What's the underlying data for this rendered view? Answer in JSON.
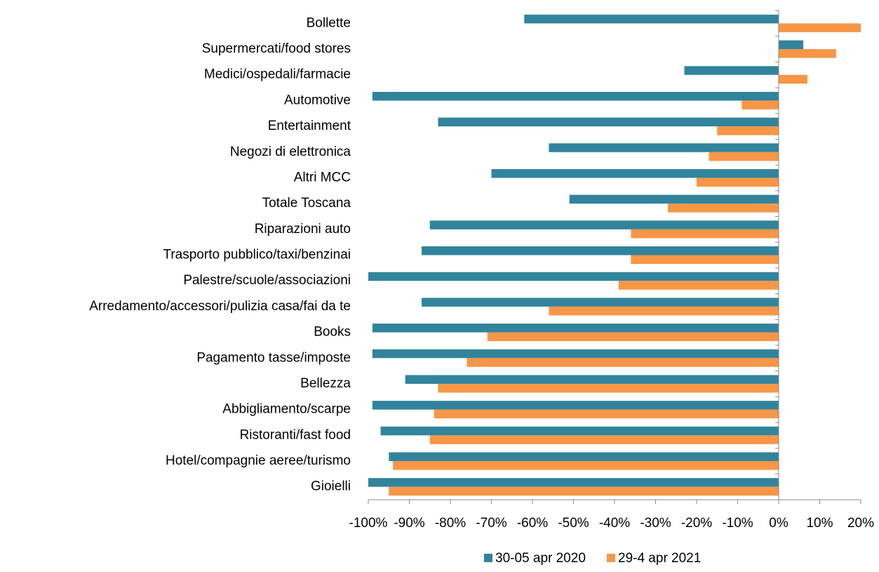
{
  "chart_data": {
    "type": "bar",
    "orientation": "horizontal",
    "categories": [
      "Bollette",
      "Supermercati/food stores",
      "Medici/ospedali/farmacie",
      "Automotive",
      "Entertainment",
      "Negozi di elettronica",
      "Altri MCC",
      "Totale Toscana",
      "Riparazioni auto",
      "Trasporto pubblico/taxi/benzinai",
      "Palestre/scuole/associazioni",
      "Arredamento/accessori/pulizia casa/fai da te",
      "Books",
      "Pagamento tasse/imposte",
      "Bellezza",
      "Abbigliamento/scarpe",
      "Ristoranti/fast food",
      "Hotel/compagnie aeree/turismo",
      "Gioielli"
    ],
    "series": [
      {
        "name": "30-05 apr 2020",
        "color": "#31849b",
        "values": [
          -62,
          6,
          -23,
          -99,
          -83,
          -56,
          -70,
          -51,
          -85,
          -87,
          -100,
          -87,
          -99,
          -99,
          -91,
          -99,
          -97,
          -95,
          -100
        ]
      },
      {
        "name": "29-4 apr 2021",
        "color": "#f79646",
        "values": [
          20,
          14,
          7,
          -9,
          -15,
          -17,
          -20,
          -27,
          -36,
          -36,
          -39,
          -56,
          -71,
          -76,
          -83,
          -84,
          -85,
          -94,
          -95
        ]
      }
    ],
    "xlim": [
      -100,
      20
    ],
    "xticks": [
      {
        "value": -100,
        "label": "-100%"
      },
      {
        "value": -90,
        "label": "-90%"
      },
      {
        "value": -80,
        "label": "-80%"
      },
      {
        "value": -70,
        "label": "-70%"
      },
      {
        "value": -60,
        "label": "-60%"
      },
      {
        "value": -50,
        "label": "-50%"
      },
      {
        "value": -40,
        "label": "-40%"
      },
      {
        "value": -30,
        "label": "-30%"
      },
      {
        "value": -20,
        "label": "-20%"
      },
      {
        "value": -10,
        "label": "-10%"
      },
      {
        "value": 0,
        "label": "0%"
      },
      {
        "value": 10,
        "label": "10%"
      },
      {
        "value": 20,
        "label": "20%"
      }
    ],
    "legend": "bottom"
  }
}
